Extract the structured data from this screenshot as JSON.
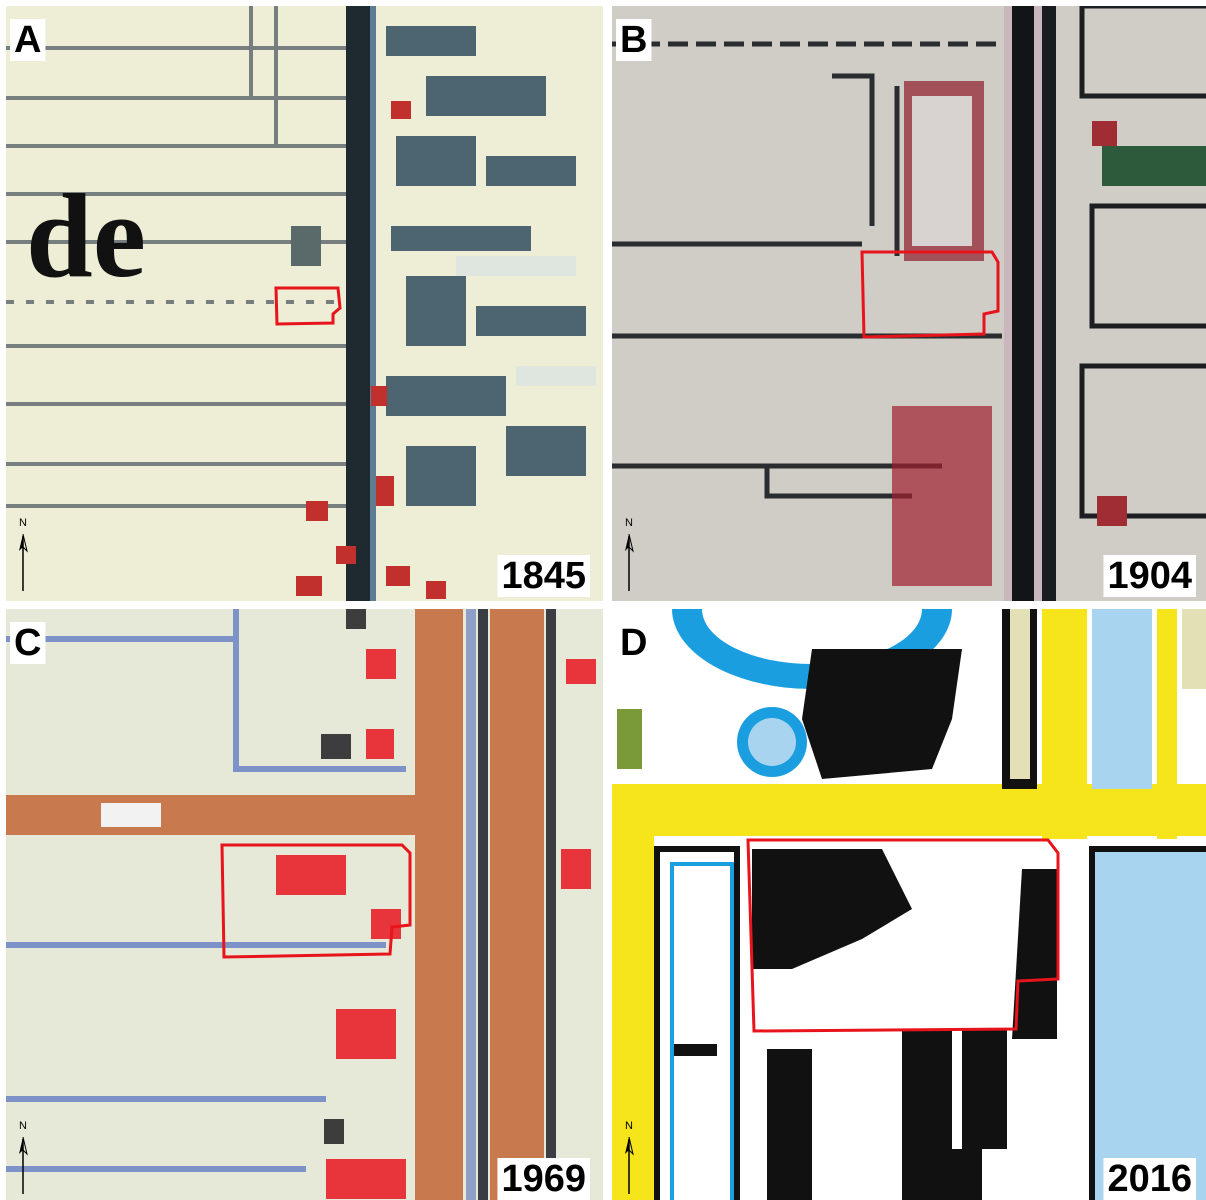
{
  "panels": [
    {
      "label": "A",
      "year": "1845",
      "north": "N",
      "map_text": "de"
    },
    {
      "label": "B",
      "year": "1904",
      "north": "N"
    },
    {
      "label": "C",
      "year": "1969",
      "north": "N"
    },
    {
      "label": "D",
      "year": "2016",
      "north": "N"
    }
  ]
}
